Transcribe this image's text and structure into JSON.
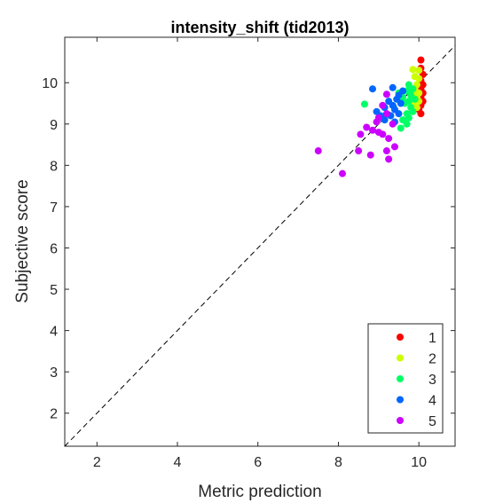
{
  "chart_data": {
    "type": "scatter",
    "title": "intensity_shift (tid2013)",
    "xlabel": "Metric prediction",
    "ylabel": "Subjective score",
    "xlim": [
      1.2,
      10.9
    ],
    "ylim": [
      1.2,
      11.1
    ],
    "xticks": [
      2,
      4,
      6,
      8,
      10
    ],
    "yticks": [
      2,
      3,
      4,
      5,
      6,
      7,
      8,
      9,
      10
    ],
    "reference_line": "y = x",
    "grid": false,
    "legend_position": "bottom-right",
    "series": [
      {
        "name": "1",
        "color": "#ff0000",
        "points": [
          [
            10.05,
            10.55
          ],
          [
            10.05,
            10.35
          ],
          [
            10.1,
            10.2
          ],
          [
            10.05,
            10.05
          ],
          [
            10.1,
            9.95
          ],
          [
            10.05,
            9.85
          ],
          [
            10.1,
            9.75
          ],
          [
            10.05,
            9.65
          ],
          [
            10.1,
            9.55
          ],
          [
            10.05,
            9.45
          ],
          [
            10.0,
            9.35
          ],
          [
            10.05,
            9.25
          ]
        ]
      },
      {
        "name": "2",
        "color": "#ccff00",
        "points": [
          [
            9.85,
            10.32
          ],
          [
            10.0,
            10.3
          ],
          [
            9.9,
            10.15
          ],
          [
            10.0,
            10.1
          ],
          [
            9.95,
            9.95
          ],
          [
            9.9,
            9.85
          ],
          [
            10.0,
            9.75
          ],
          [
            9.95,
            9.65
          ],
          [
            10.0,
            9.55
          ],
          [
            9.9,
            9.5
          ],
          [
            9.95,
            9.4
          ],
          [
            9.85,
            9.75
          ]
        ]
      },
      {
        "name": "3",
        "color": "#00ff66",
        "points": [
          [
            9.75,
            9.95
          ],
          [
            9.85,
            9.85
          ],
          [
            9.7,
            9.8
          ],
          [
            9.8,
            9.7
          ],
          [
            9.9,
            9.6
          ],
          [
            9.75,
            9.55
          ],
          [
            9.65,
            9.5
          ],
          [
            9.8,
            9.4
          ],
          [
            9.85,
            9.3
          ],
          [
            9.7,
            9.25
          ],
          [
            9.75,
            9.15
          ],
          [
            9.6,
            9.1
          ],
          [
            9.7,
            9.0
          ],
          [
            9.55,
            8.9
          ],
          [
            8.65,
            9.48
          ],
          [
            9.6,
            9.65
          ],
          [
            9.5,
            9.75
          ]
        ]
      },
      {
        "name": "4",
        "color": "#0066ff",
        "points": [
          [
            9.35,
            9.88
          ],
          [
            8.85,
            9.85
          ],
          [
            9.6,
            9.8
          ],
          [
            9.5,
            9.7
          ],
          [
            9.45,
            9.6
          ],
          [
            9.25,
            9.55
          ],
          [
            9.55,
            9.5
          ],
          [
            9.35,
            9.45
          ],
          [
            9.15,
            9.4
          ],
          [
            9.4,
            9.35
          ],
          [
            9.5,
            9.25
          ],
          [
            8.95,
            9.3
          ],
          [
            9.3,
            9.2
          ],
          [
            9.15,
            9.1
          ],
          [
            9.4,
            9.05
          ],
          [
            9.05,
            9.2
          ]
        ]
      },
      {
        "name": "5",
        "color": "#cc00ff",
        "points": [
          [
            9.2,
            9.72
          ],
          [
            9.1,
            9.45
          ],
          [
            9.2,
            9.25
          ],
          [
            9.0,
            9.15
          ],
          [
            8.95,
            9.05
          ],
          [
            9.35,
            9.0
          ],
          [
            8.7,
            8.92
          ],
          [
            8.85,
            8.85
          ],
          [
            9.0,
            8.8
          ],
          [
            9.1,
            8.75
          ],
          [
            9.25,
            8.65
          ],
          [
            8.55,
            8.75
          ],
          [
            9.4,
            8.45
          ],
          [
            9.2,
            8.35
          ],
          [
            8.5,
            8.35
          ],
          [
            8.8,
            8.25
          ],
          [
            9.25,
            8.15
          ],
          [
            7.5,
            8.35
          ],
          [
            8.1,
            7.8
          ]
        ]
      }
    ]
  }
}
